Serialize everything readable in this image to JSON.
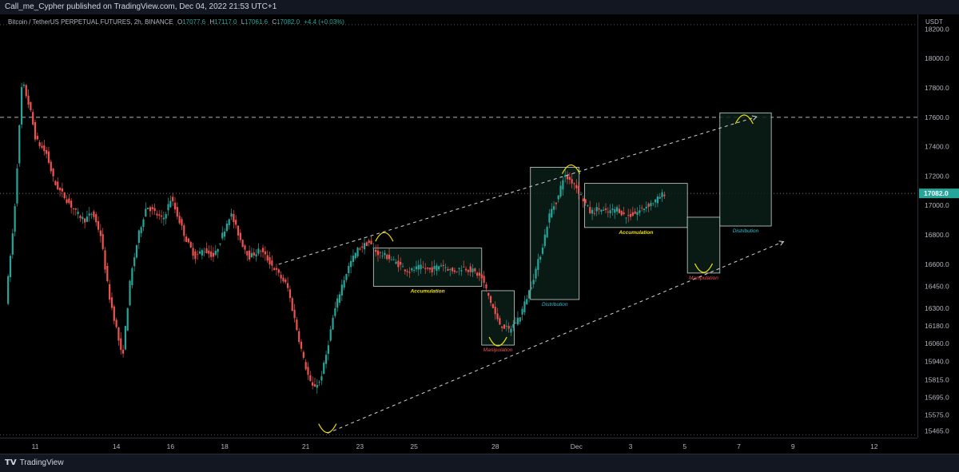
{
  "header": {
    "publisher": "Call_me_Cypher published on TradingView.com, Dec 04, 2022 21:53 UTC+1"
  },
  "legend": {
    "symbol": "Bitcoin / TetherUS PERPETUAL FUTURES, 2h, BINANCE",
    "open_label": "O",
    "open": "17077.6",
    "high_label": "H",
    "high": "17117.0",
    "low_label": "L",
    "low": "17061.6",
    "close_label": "C",
    "close": "17082.0",
    "change": "+4.4 (+0.03%)"
  },
  "price_axis": {
    "currency": "USDT"
  },
  "footer": {
    "brand": "TradingView"
  },
  "colors": {
    "up": "#26a69a",
    "down": "#ef5350",
    "yellow": "#f2e200",
    "box_border": "#c8d6d0",
    "box_fill": "#0b1d17",
    "current_price_bg": "#26a69a"
  },
  "chart_data": {
    "type": "candlestick",
    "title": "Bitcoin / TetherUS PERPETUAL FUTURES, 2h, BINANCE",
    "ylabel": "USDT",
    "ylim": [
      15420,
      18300
    ],
    "y_ticks": [
      {
        "value": 18200,
        "label": "18200.0"
      },
      {
        "value": 18000,
        "label": "18000.0"
      },
      {
        "value": 17800,
        "label": "17800.0"
      },
      {
        "value": 17600,
        "label": "17600.0"
      },
      {
        "value": 17400,
        "label": "17400.0"
      },
      {
        "value": 17200,
        "label": "17200.0"
      },
      {
        "value": 17000,
        "label": "17000.0"
      },
      {
        "value": 16800,
        "label": "16800.0"
      },
      {
        "value": 16600,
        "label": "16600.0"
      },
      {
        "value": 16450,
        "label": "16450.0"
      },
      {
        "value": 16300,
        "label": "16300.0"
      },
      {
        "value": 16180,
        "label": "16180.0"
      },
      {
        "value": 16060,
        "label": "16060.0"
      },
      {
        "value": 15940,
        "label": "15940.0"
      },
      {
        "value": 15815,
        "label": "15815.0"
      },
      {
        "value": 15695,
        "label": "15695.0"
      },
      {
        "value": 15575,
        "label": "15575.0"
      },
      {
        "value": 15465,
        "label": "15465.0"
      }
    ],
    "x_ticks": [
      {
        "day": 11,
        "label": "11"
      },
      {
        "day": 14,
        "label": "14"
      },
      {
        "day": 16,
        "label": "16"
      },
      {
        "day": 18,
        "label": "18"
      },
      {
        "day": 21,
        "label": "21"
      },
      {
        "day": 23,
        "label": "23"
      },
      {
        "day": 25,
        "label": "25"
      },
      {
        "day": 28,
        "label": "28"
      },
      {
        "day": 31,
        "label": "Dec"
      },
      {
        "day": 33,
        "label": "3"
      },
      {
        "day": 35,
        "label": "5"
      },
      {
        "day": 37,
        "label": "7"
      },
      {
        "day": 39,
        "label": "9"
      },
      {
        "day": 42,
        "label": "12"
      }
    ],
    "current_price": {
      "value": 17082,
      "label": "17082.0"
    },
    "horizontal_levels": [
      {
        "value": 18230,
        "style": "dotted"
      },
      {
        "value": 17600,
        "style": "dashed"
      },
      {
        "value": 15440,
        "style": "dotted"
      }
    ],
    "price_path": [
      [
        10.0,
        16350
      ],
      [
        10.3,
        16900
      ],
      [
        10.6,
        17850
      ],
      [
        10.9,
        17650
      ],
      [
        11.1,
        17450
      ],
      [
        11.5,
        17350
      ],
      [
        11.8,
        17150
      ],
      [
        12.2,
        17050
      ],
      [
        12.6,
        16950
      ],
      [
        12.9,
        16900
      ],
      [
        13.2,
        16950
      ],
      [
        13.5,
        16800
      ],
      [
        13.8,
        16400
      ],
      [
        14.1,
        16150
      ],
      [
        14.3,
        15950
      ],
      [
        14.6,
        16500
      ],
      [
        14.9,
        16800
      ],
      [
        15.2,
        17000
      ],
      [
        15.5,
        16950
      ],
      [
        15.8,
        16900
      ],
      [
        16.1,
        17050
      ],
      [
        16.4,
        16900
      ],
      [
        16.7,
        16750
      ],
      [
        17.0,
        16650
      ],
      [
        17.3,
        16700
      ],
      [
        17.7,
        16650
      ],
      [
        18.0,
        16800
      ],
      [
        18.3,
        16950
      ],
      [
        18.7,
        16750
      ],
      [
        19.0,
        16650
      ],
      [
        19.4,
        16700
      ],
      [
        19.8,
        16600
      ],
      [
        20.0,
        16550
      ],
      [
        20.4,
        16450
      ],
      [
        20.7,
        16200
      ],
      [
        21.0,
        15950
      ],
      [
        21.3,
        15760
      ],
      [
        21.6,
        15800
      ],
      [
        21.8,
        15950
      ],
      [
        22.1,
        16250
      ],
      [
        22.4,
        16450
      ],
      [
        22.7,
        16600
      ],
      [
        23.0,
        16700
      ],
      [
        23.4,
        16750
      ],
      [
        23.7,
        16680
      ],
      [
        24.1,
        16650
      ],
      [
        24.5,
        16600
      ],
      [
        24.9,
        16550
      ],
      [
        25.3,
        16580
      ],
      [
        25.7,
        16560
      ],
      [
        26.1,
        16600
      ],
      [
        26.5,
        16550
      ],
      [
        26.9,
        16580
      ],
      [
        27.3,
        16550
      ],
      [
        27.6,
        16500
      ],
      [
        27.9,
        16350
      ],
      [
        28.2,
        16200
      ],
      [
        28.6,
        16150
      ],
      [
        29.0,
        16250
      ],
      [
        29.4,
        16450
      ],
      [
        29.8,
        16700
      ],
      [
        30.1,
        16950
      ],
      [
        30.4,
        17050
      ],
      [
        30.6,
        17200
      ],
      [
        30.8,
        17180
      ],
      [
        31.0,
        17150
      ],
      [
        31.3,
        17050
      ],
      [
        31.6,
        16950
      ],
      [
        31.9,
        16980
      ],
      [
        32.2,
        16950
      ],
      [
        32.6,
        16980
      ],
      [
        32.9,
        16920
      ],
      [
        33.3,
        16950
      ],
      [
        33.7,
        17000
      ],
      [
        34.0,
        17030
      ],
      [
        34.3,
        17082
      ]
    ],
    "trend_channel": {
      "upper": {
        "from": {
          "day": 20.0,
          "value": 16600
        },
        "to": {
          "day": 37.6,
          "value": 17600
        }
      },
      "lower": {
        "from": {
          "day": 21.8,
          "value": 15450
        },
        "to": {
          "day": 38.6,
          "value": 16750
        }
      }
    },
    "zones": [
      {
        "label": "Accumulation",
        "color": "#f2e200",
        "x": [
          23.5,
          27.5
        ],
        "y": [
          16450,
          16710
        ],
        "label_pos": "below"
      },
      {
        "label": "Manipulation",
        "color": "#ef5350",
        "x": [
          27.5,
          28.7
        ],
        "y": [
          16050,
          16420
        ],
        "label_pos": "below"
      },
      {
        "label": "Distribution",
        "color": "#26c6da",
        "x": [
          29.3,
          31.1
        ],
        "y": [
          16360,
          17260
        ],
        "label_pos": "below"
      },
      {
        "label": "Accumulation",
        "color": "#f2e200",
        "x": [
          31.3,
          35.1
        ],
        "y": [
          16850,
          17150
        ],
        "label_pos": "below"
      },
      {
        "label": "Manipulation",
        "color": "#ef5350",
        "x": [
          35.1,
          36.3
        ],
        "y": [
          16540,
          16920
        ],
        "label_pos": "below"
      },
      {
        "label": "Distribution",
        "color": "#26c6da",
        "x": [
          36.3,
          38.2
        ],
        "y": [
          16860,
          17630
        ],
        "label_pos": "below"
      }
    ],
    "arcs": [
      {
        "type": "top",
        "day": 23.9,
        "value": 16810
      },
      {
        "type": "bottom",
        "day": 21.8,
        "value": 15460
      },
      {
        "type": "bottom",
        "day": 28.1,
        "value": 16050
      },
      {
        "type": "top",
        "day": 30.8,
        "value": 17270
      },
      {
        "type": "bottom",
        "day": 35.7,
        "value": 16550
      },
      {
        "type": "top",
        "day": 37.2,
        "value": 17610
      }
    ]
  }
}
